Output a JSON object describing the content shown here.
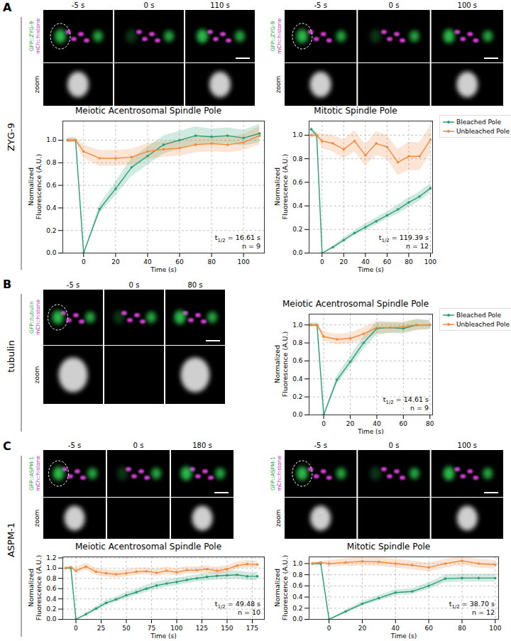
{
  "panels": [
    {
      "letter": "A",
      "label": "ZYG-9",
      "image_sets": [
        {
          "times": [
            "-5 s",
            "0 s",
            "110 s"
          ],
          "channels": [
            "GFP::ZYG-9",
            "mCh::histone"
          ],
          "zoom": "zoom"
        },
        {
          "times": [
            "-5 s",
            "0 s",
            "100 s"
          ],
          "channels": [
            "GFP::ZYG-9",
            "mCh::histone"
          ],
          "zoom": "zoom"
        }
      ]
    },
    {
      "letter": "B",
      "label": "tubulin",
      "image_sets": [
        {
          "times": [
            "-5 s",
            "0 s",
            "80 s"
          ],
          "channels": [
            "GFP::tubulin",
            "mCh::histone"
          ],
          "zoom": "zoom"
        }
      ]
    },
    {
      "letter": "C",
      "label": "ASPM-1",
      "image_sets": [
        {
          "times": [
            "-5 s",
            "0 s",
            "180 s"
          ],
          "channels": [
            "GFP::ASPM-1",
            "mCh::histone"
          ],
          "zoom": "zoom"
        },
        {
          "times": [
            "-5 s",
            "0 s",
            "100 s"
          ],
          "channels": [
            "GFP::ASPM-1",
            "mCh::histone"
          ],
          "zoom": "zoom"
        }
      ]
    }
  ],
  "chart_data": [
    {
      "type": "line",
      "title": "Meiotic Acentrosomal Spindle Pole",
      "xlabel": "Time (s)",
      "ylabel": "Normalized\nFluorescence (A.U.)",
      "x": [
        -10,
        -5,
        0,
        10,
        20,
        30,
        40,
        50,
        60,
        70,
        80,
        90,
        100,
        110
      ],
      "series": [
        {
          "name": "Bleached Pole",
          "color": "#2a9d78",
          "values": [
            1.0,
            1.0,
            0.0,
            0.39,
            0.57,
            0.76,
            0.86,
            0.96,
            1.0,
            1.04,
            1.03,
            1.04,
            1.02,
            1.06
          ],
          "error": [
            0.02,
            0.02,
            0.0,
            0.04,
            0.06,
            0.08,
            0.08,
            0.08,
            0.08,
            0.08,
            0.07,
            0.07,
            0.07,
            0.08
          ]
        },
        {
          "name": "Unbleached Pole",
          "color": "#f28a3c",
          "values": [
            1.0,
            1.0,
            0.9,
            0.84,
            0.84,
            0.85,
            0.9,
            0.92,
            0.93,
            0.96,
            0.97,
            0.96,
            0.98,
            1.04
          ],
          "error": [
            0.02,
            0.02,
            0.06,
            0.07,
            0.07,
            0.07,
            0.07,
            0.07,
            0.07,
            0.07,
            0.07,
            0.07,
            0.07,
            0.08
          ]
        }
      ],
      "xlim": [
        -13,
        113
      ],
      "ylim": [
        0,
        1.17
      ],
      "xticks": [
        0,
        20,
        40,
        60,
        80,
        100
      ],
      "yticks": [
        {
          "value": 0,
          "label": "0.0"
        },
        {
          "value": 0.2,
          "label": "0.2"
        },
        {
          "value": 0.4,
          "label": "0.4"
        },
        {
          "value": 0.6,
          "label": "0.6"
        },
        {
          "value": 0.8,
          "label": "0.8"
        },
        {
          "value": 1.0,
          "label": "1.0"
        }
      ],
      "grid": true,
      "marker": "circle",
      "annotations": [
        [
          "t",
          "1/2",
          " = 16.61 s"
        ],
        [
          "n = 9"
        ]
      ]
    },
    {
      "type": "line",
      "title": "Mitotic Spindle Pole",
      "xlabel": "Time (s)",
      "ylabel": "Normalized\nFluorescence (A.U.)",
      "x": [
        -10,
        -5,
        0,
        10,
        20,
        30,
        40,
        50,
        60,
        70,
        80,
        90,
        100
      ],
      "series": [
        {
          "name": "Bleached Pole",
          "color": "#2a9d78",
          "values": [
            1.05,
            1.0,
            0.0,
            0.05,
            0.11,
            0.17,
            0.22,
            0.27,
            0.32,
            0.37,
            0.43,
            0.48,
            0.55
          ],
          "error": [
            0.02,
            0.02,
            0.0,
            0.01,
            0.02,
            0.02,
            0.03,
            0.03,
            0.03,
            0.04,
            0.04,
            0.04,
            0.04
          ]
        },
        {
          "name": "Unbleached Pole",
          "color": "#f28a3c",
          "values": [
            1.0,
            1.0,
            0.95,
            0.93,
            0.88,
            0.95,
            0.83,
            0.93,
            0.9,
            0.77,
            0.82,
            0.82,
            0.96
          ],
          "error": [
            0.02,
            0.02,
            0.06,
            0.07,
            0.08,
            0.09,
            0.09,
            0.1,
            0.1,
            0.11,
            0.12,
            0.12,
            0.12
          ]
        }
      ],
      "xlim": [
        -12,
        102
      ],
      "ylim": [
        0,
        1.12
      ],
      "xticks": [
        0,
        20,
        40,
        60,
        80,
        100
      ],
      "yticks": [
        {
          "value": 0,
          "label": "0.0"
        },
        {
          "value": 0.2,
          "label": "0.2"
        },
        {
          "value": 0.4,
          "label": "0.4"
        },
        {
          "value": 0.6,
          "label": "0.6"
        },
        {
          "value": 0.8,
          "label": "0.8"
        },
        {
          "value": 1.0,
          "label": "1.0"
        }
      ],
      "grid": true,
      "marker": "circle",
      "legend": "right",
      "annotations": [
        [
          "t",
          "1/2",
          " = 119.39 s"
        ],
        [
          "n = 12"
        ]
      ]
    },
    {
      "type": "line",
      "title": "Meiotic Acentrosomal Spindle Pole",
      "xlabel": "Time (s)",
      "ylabel": "Normalized\nFluorescence (A.U.)",
      "x": [
        -10,
        -5,
        0,
        10,
        20,
        30,
        40,
        50,
        60,
        70,
        80
      ],
      "series": [
        {
          "name": "Bleached Pole",
          "color": "#2a9d78",
          "values": [
            1.0,
            1.0,
            0.0,
            0.39,
            0.59,
            0.8,
            0.96,
            0.97,
            0.96,
            1.0,
            1.0
          ],
          "error": [
            0.02,
            0.02,
            0.0,
            0.05,
            0.06,
            0.07,
            0.07,
            0.06,
            0.06,
            0.06,
            0.05
          ]
        },
        {
          "name": "Unbleached Pole",
          "color": "#f28a3c",
          "values": [
            1.0,
            1.0,
            0.87,
            0.84,
            0.85,
            0.9,
            0.97,
            0.97,
            0.98,
            1.0,
            1.0
          ],
          "error": [
            0.02,
            0.02,
            0.05,
            0.06,
            0.06,
            0.07,
            0.07,
            0.06,
            0.06,
            0.06,
            0.05
          ]
        }
      ],
      "xlim": [
        -11,
        82
      ],
      "ylim": [
        0,
        1.12
      ],
      "xticks": [
        0,
        20,
        40,
        60,
        80
      ],
      "yticks": [
        {
          "value": 0,
          "label": "0.0"
        },
        {
          "value": 0.2,
          "label": "0.2"
        },
        {
          "value": 0.4,
          "label": "0.4"
        },
        {
          "value": 0.6,
          "label": "0.6"
        },
        {
          "value": 0.8,
          "label": "0.8"
        },
        {
          "value": 1.0,
          "label": "1.0"
        }
      ],
      "grid": true,
      "marker": "circle",
      "legend": "right",
      "annotations": [
        [
          "t",
          "1/2",
          " = 14.61 s"
        ],
        [
          "n = 9"
        ]
      ]
    },
    {
      "type": "line",
      "title": "Meiotic Acentrosomal Spindle Pole",
      "xlabel": "Time (s)",
      "ylabel": "Normalized\nFluorescence (A.U.)",
      "x": [
        -10,
        -5,
        0,
        10,
        20,
        30,
        40,
        50,
        60,
        70,
        80,
        90,
        100,
        110,
        120,
        130,
        140,
        150,
        160,
        170,
        180
      ],
      "series": [
        {
          "name": "Bleached Pole",
          "color": "#2a9d78",
          "values": [
            1.0,
            1.0,
            0.0,
            0.1,
            0.21,
            0.32,
            0.39,
            0.47,
            0.53,
            0.6,
            0.66,
            0.7,
            0.73,
            0.77,
            0.8,
            0.83,
            0.85,
            0.86,
            0.87,
            0.84,
            0.84
          ],
          "error": [
            0.02,
            0.02,
            0.0,
            0.03,
            0.04,
            0.05,
            0.05,
            0.06,
            0.06,
            0.07,
            0.07,
            0.07,
            0.07,
            0.07,
            0.07,
            0.08,
            0.08,
            0.08,
            0.08,
            0.08,
            0.08
          ]
        },
        {
          "name": "Unbleached Pole",
          "color": "#f28a3c",
          "values": [
            1.0,
            1.02,
            0.95,
            1.03,
            0.93,
            0.9,
            0.88,
            0.9,
            0.93,
            0.94,
            0.91,
            0.95,
            0.92,
            0.96,
            0.96,
            0.98,
            0.95,
            0.98,
            1.05,
            1.08,
            1.07
          ],
          "error": [
            0.02,
            0.02,
            0.06,
            0.07,
            0.07,
            0.07,
            0.07,
            0.07,
            0.07,
            0.07,
            0.07,
            0.07,
            0.07,
            0.07,
            0.07,
            0.07,
            0.07,
            0.07,
            0.07,
            0.07,
            0.07
          ]
        }
      ],
      "xlim": [
        -13,
        187
      ],
      "ylim": [
        0,
        1.22
      ],
      "xticks": [
        0,
        25,
        50,
        75,
        100,
        125,
        150,
        175
      ],
      "yticks": [
        {
          "value": 0,
          "label": "0.0"
        },
        {
          "value": 0.2,
          "label": "0.2"
        },
        {
          "value": 0.4,
          "label": "0.4"
        },
        {
          "value": 0.6,
          "label": "0.6"
        },
        {
          "value": 0.8,
          "label": "0.8"
        },
        {
          "value": 1.0,
          "label": "1.0"
        },
        {
          "value": 1.2,
          "label": "1.2"
        }
      ],
      "grid": true,
      "marker": "circle",
      "annotations": [
        [
          "t",
          "1/2",
          " = 49.48 s"
        ],
        [
          "n = 10"
        ]
      ]
    },
    {
      "type": "line",
      "title": "Mitotic Spindle Pole",
      "xlabel": "Time (s)",
      "ylabel": "Normalized\nFluorescence (A.U.)",
      "x": [
        -10,
        -5,
        0,
        10,
        20,
        30,
        40,
        50,
        60,
        70,
        80,
        90,
        100
      ],
      "series": [
        {
          "name": "Bleached Pole",
          "color": "#2a9d78",
          "values": [
            1.0,
            1.0,
            0.0,
            0.14,
            0.28,
            0.38,
            0.48,
            0.5,
            0.6,
            0.73,
            0.74,
            0.74,
            0.74
          ],
          "error": [
            0.02,
            0.02,
            0.0,
            0.03,
            0.04,
            0.05,
            0.05,
            0.05,
            0.06,
            0.07,
            0.07,
            0.07,
            0.07
          ]
        },
        {
          "name": "Unbleached Pole",
          "color": "#f28a3c",
          "values": [
            1.0,
            1.02,
            1.0,
            1.02,
            1.04,
            1.03,
            1.0,
            0.97,
            0.93,
            1.0,
            1.05,
            1.0,
            0.98
          ],
          "error": [
            0.02,
            0.02,
            0.06,
            0.07,
            0.08,
            0.08,
            0.08,
            0.08,
            0.08,
            0.08,
            0.08,
            0.08,
            0.08
          ]
        }
      ],
      "xlim": [
        -12,
        102
      ],
      "ylim": [
        0,
        1.12
      ],
      "xticks": [
        0,
        20,
        40,
        60,
        80,
        100
      ],
      "yticks": [
        {
          "value": 0,
          "label": "0.0"
        },
        {
          "value": 0.2,
          "label": "0.2"
        },
        {
          "value": 0.4,
          "label": "0.4"
        },
        {
          "value": 0.6,
          "label": "0.6"
        },
        {
          "value": 0.8,
          "label": "0.8"
        },
        {
          "value": 1.0,
          "label": "1.0"
        }
      ],
      "grid": true,
      "marker": "circle",
      "annotations": [
        [
          "t",
          "1/2",
          " = 38.70 s"
        ],
        [
          "n = 12"
        ]
      ]
    }
  ]
}
